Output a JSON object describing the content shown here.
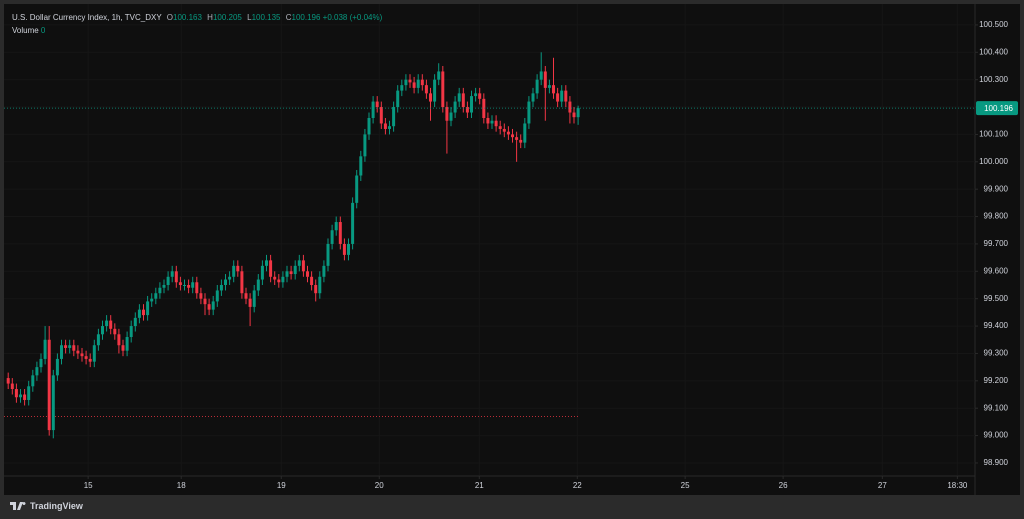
{
  "chart_data": {
    "type": "candlestick",
    "title": "U.S. Dollar Currency Index, 1h, TVC_DXY",
    "ohlc_prefixes": [
      "O",
      "H",
      "L",
      "C"
    ],
    "change": "+0.038 (+0.04%)",
    "volume_label": "Volume",
    "volume": 0,
    "brand": "TradingView",
    "up_color": "#089981",
    "down_color": "#f23645",
    "grid": true,
    "reference_line": 99.07,
    "xlim": [
      -2,
      235.8
    ],
    "xticks": [
      {
        "value": 19.5,
        "label": "15"
      },
      {
        "value": 42.2,
        "label": "18"
      },
      {
        "value": 66.6,
        "label": "19"
      },
      {
        "value": 90.5,
        "label": "20"
      },
      {
        "value": 114.9,
        "label": "21"
      },
      {
        "value": 138.8,
        "label": "22"
      },
      {
        "value": 165.1,
        "label": "25"
      },
      {
        "value": 189.0,
        "label": "26"
      },
      {
        "value": 213.2,
        "label": "27"
      },
      {
        "value": 231.5,
        "label": "18:30"
      }
    ],
    "ylim": [
      98.856,
      100.591
    ],
    "yticks": [
      {
        "value": 98.9,
        "label": "98.900"
      },
      {
        "value": 99.0,
        "label": "99.000"
      },
      {
        "value": 99.1,
        "label": "99.100"
      },
      {
        "value": 99.2,
        "label": "99.200"
      },
      {
        "value": 99.3,
        "label": "99.300"
      },
      {
        "value": 99.4,
        "label": "99.400"
      },
      {
        "value": 99.5,
        "label": "99.500"
      },
      {
        "value": 99.6,
        "label": "99.600"
      },
      {
        "value": 99.7,
        "label": "99.700"
      },
      {
        "value": 99.8,
        "label": "99.800"
      },
      {
        "value": 99.9,
        "label": "99.900"
      },
      {
        "value": 100.0,
        "label": "100.000"
      },
      {
        "value": 100.1,
        "label": "100.100"
      },
      {
        "value": 100.2,
        "label": "100.200"
      },
      {
        "value": 100.3,
        "label": "100.300"
      },
      {
        "value": 100.4,
        "label": "100.400"
      },
      {
        "value": 100.5,
        "label": "100.500"
      }
    ],
    "open": [
      99.21,
      99.19,
      99.17,
      99.14,
      99.15,
      99.13,
      99.18,
      99.22,
      99.25,
      99.28,
      99.35,
      99.02,
      99.22,
      99.28,
      99.33,
      99.32,
      99.33,
      99.31,
      99.3,
      99.29,
      99.28,
      99.27,
      99.33,
      99.37,
      99.4,
      99.42,
      99.39,
      99.37,
      99.33,
      99.31,
      99.36,
      99.4,
      99.43,
      99.46,
      99.44,
      99.49,
      99.5,
      99.52,
      99.54,
      99.55,
      99.58,
      99.6,
      99.56,
      99.55,
      99.55,
      99.54,
      99.56,
      99.52,
      99.5,
      99.48,
      99.46,
      99.49,
      99.53,
      99.55,
      99.57,
      99.58,
      99.62,
      99.6,
      99.52,
      99.5,
      99.47,
      99.53,
      99.57,
      99.62,
      99.64,
      99.58,
      99.57,
      99.56,
      99.58,
      99.6,
      99.59,
      99.62,
      99.64,
      99.6,
      99.58,
      99.55,
      99.52,
      99.58,
      99.62,
      99.7,
      99.75,
      99.78,
      99.7,
      99.66,
      99.7,
      99.85,
      99.95,
      100.02,
      100.1,
      100.16,
      100.22,
      100.2,
      100.14,
      100.12,
      100.13,
      100.2,
      100.26,
      100.28,
      100.3,
      100.29,
      100.27,
      100.3,
      100.28,
      100.25,
      100.22,
      100.3,
      100.33,
      100.2,
      100.15,
      100.18,
      100.22,
      100.25,
      100.2,
      100.18,
      100.24,
      100.25,
      100.23,
      100.16,
      100.14,
      100.15,
      100.13,
      100.12,
      100.11,
      100.1,
      100.09,
      100.08,
      100.07,
      100.14,
      100.22,
      100.25,
      100.3,
      100.33,
      100.27,
      100.28,
      100.25,
      100.22,
      100.26,
      100.22,
      100.18,
      100.163
    ],
    "high": [
      99.23,
      99.21,
      99.19,
      99.17,
      99.17,
      99.2,
      99.24,
      99.27,
      99.3,
      99.4,
      99.4,
      99.24,
      99.3,
      99.35,
      99.35,
      99.35,
      99.35,
      99.33,
      99.32,
      99.31,
      99.3,
      99.35,
      99.39,
      99.42,
      99.44,
      99.44,
      99.41,
      99.39,
      99.35,
      99.38,
      99.42,
      99.45,
      99.48,
      99.48,
      99.51,
      99.52,
      99.54,
      99.56,
      99.57,
      99.6,
      99.62,
      99.62,
      99.58,
      99.57,
      99.57,
      99.58,
      99.58,
      99.54,
      99.52,
      99.5,
      99.51,
      99.55,
      99.57,
      99.59,
      99.6,
      99.64,
      99.64,
      99.62,
      99.54,
      99.52,
      99.55,
      99.59,
      99.64,
      99.66,
      99.66,
      99.6,
      99.59,
      99.6,
      99.62,
      99.62,
      99.64,
      99.66,
      99.66,
      99.62,
      99.6,
      99.57,
      99.6,
      99.64,
      99.72,
      99.77,
      99.8,
      99.8,
      99.72,
      99.72,
      99.87,
      99.97,
      100.04,
      100.12,
      100.18,
      100.24,
      100.24,
      100.22,
      100.16,
      100.15,
      100.22,
      100.28,
      100.3,
      100.32,
      100.32,
      100.31,
      100.32,
      100.32,
      100.3,
      100.27,
      100.32,
      100.36,
      100.35,
      100.22,
      100.2,
      100.24,
      100.27,
      100.27,
      100.22,
      100.26,
      100.27,
      100.27,
      100.25,
      100.18,
      100.17,
      100.17,
      100.15,
      100.14,
      100.13,
      100.12,
      100.11,
      100.1,
      100.16,
      100.24,
      100.27,
      100.32,
      100.4,
      100.35,
      100.3,
      100.38,
      100.27,
      100.28,
      100.28,
      100.24,
      100.2,
      100.205
    ],
    "low": [
      99.17,
      99.15,
      99.12,
      99.12,
      99.11,
      99.11,
      99.16,
      99.2,
      99.23,
      99.26,
      99.0,
      98.99,
      99.2,
      99.26,
      99.3,
      99.3,
      99.29,
      99.28,
      99.27,
      99.26,
      99.25,
      99.25,
      99.31,
      99.35,
      99.38,
      99.37,
      99.35,
      99.3,
      99.29,
      99.29,
      99.34,
      99.38,
      99.41,
      99.42,
      99.42,
      99.47,
      99.48,
      99.5,
      99.52,
      99.53,
      99.56,
      99.54,
      99.53,
      99.53,
      99.52,
      99.52,
      99.5,
      99.48,
      99.44,
      99.44,
      99.44,
      99.47,
      99.51,
      99.53,
      99.55,
      99.56,
      99.58,
      99.5,
      99.48,
      99.4,
      99.45,
      99.51,
      99.55,
      99.6,
      99.56,
      99.55,
      99.54,
      99.54,
      99.56,
      99.57,
      99.57,
      99.6,
      99.58,
      99.56,
      99.53,
      99.49,
      99.5,
      99.56,
      99.6,
      99.68,
      99.73,
      99.68,
      99.64,
      99.64,
      99.68,
      99.83,
      99.93,
      100.0,
      100.08,
      100.14,
      100.18,
      100.12,
      100.1,
      100.1,
      100.11,
      100.18,
      100.24,
      100.26,
      100.27,
      100.25,
      100.25,
      100.26,
      100.23,
      100.15,
      100.2,
      100.28,
      100.18,
      100.03,
      100.13,
      100.16,
      100.2,
      100.18,
      100.16,
      100.16,
      100.22,
      100.21,
      100.14,
      100.12,
      100.12,
      100.11,
      100.1,
      100.09,
      100.08,
      100.07,
      100.0,
      100.05,
      100.05,
      100.12,
      100.2,
      100.23,
      100.28,
      100.15,
      100.25,
      100.23,
      100.2,
      100.2,
      100.2,
      100.14,
      100.14,
      100.135
    ],
    "close": [
      99.19,
      99.17,
      99.14,
      99.15,
      99.13,
      99.18,
      99.22,
      99.25,
      99.28,
      99.35,
      99.02,
      99.22,
      99.28,
      99.33,
      99.32,
      99.33,
      99.31,
      99.3,
      99.29,
      99.28,
      99.27,
      99.33,
      99.37,
      99.4,
      99.42,
      99.39,
      99.37,
      99.33,
      99.31,
      99.36,
      99.4,
      99.43,
      99.46,
      99.44,
      99.49,
      99.5,
      99.52,
      99.54,
      99.55,
      99.58,
      99.6,
      99.56,
      99.55,
      99.55,
      99.54,
      99.56,
      99.52,
      99.5,
      99.48,
      99.46,
      99.49,
      99.53,
      99.55,
      99.57,
      99.58,
      99.62,
      99.6,
      99.52,
      99.5,
      99.47,
      99.53,
      99.57,
      99.62,
      99.64,
      99.58,
      99.57,
      99.56,
      99.58,
      99.6,
      99.59,
      99.62,
      99.64,
      99.6,
      99.58,
      99.55,
      99.52,
      99.58,
      99.62,
      99.7,
      99.75,
      99.78,
      99.7,
      99.66,
      99.7,
      99.85,
      99.95,
      100.02,
      100.1,
      100.16,
      100.22,
      100.2,
      100.14,
      100.12,
      100.13,
      100.2,
      100.26,
      100.28,
      100.3,
      100.29,
      100.27,
      100.3,
      100.28,
      100.25,
      100.22,
      100.3,
      100.33,
      100.2,
      100.15,
      100.18,
      100.22,
      100.25,
      100.2,
      100.18,
      100.24,
      100.25,
      100.23,
      100.16,
      100.14,
      100.15,
      100.13,
      100.12,
      100.11,
      100.1,
      100.09,
      100.08,
      100.07,
      100.14,
      100.22,
      100.25,
      100.3,
      100.33,
      100.27,
      100.28,
      100.25,
      100.22,
      100.26,
      100.22,
      100.18,
      100.163,
      100.196
    ]
  }
}
